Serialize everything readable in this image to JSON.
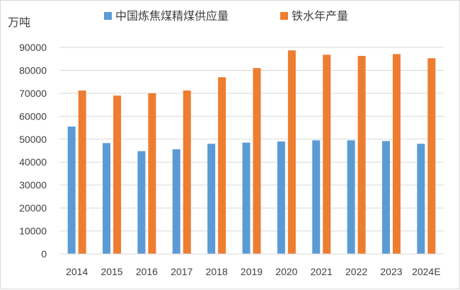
{
  "chart_data": {
    "type": "bar",
    "ylabel": "万吨",
    "categories": [
      "2014",
      "2015",
      "2016",
      "2017",
      "2018",
      "2019",
      "2020",
      "2021",
      "2022",
      "2023",
      "2024E"
    ],
    "ylim": [
      0,
      90000
    ],
    "yticks": [
      0,
      10000,
      20000,
      30000,
      40000,
      50000,
      60000,
      70000,
      80000,
      90000
    ],
    "grid": true,
    "legend_position": "top",
    "series": [
      {
        "name": "中国炼焦煤精煤供应量",
        "color": "#5b9bd5",
        "values": [
          55500,
          48300,
          44800,
          45600,
          48000,
          48500,
          49000,
          49500,
          49500,
          49200,
          48000
        ]
      },
      {
        "name": "铁水年产量",
        "color": "#ed7d31",
        "values": [
          71200,
          69000,
          70000,
          71200,
          77000,
          81000,
          88700,
          86800,
          86300,
          87100,
          85300
        ]
      }
    ]
  }
}
